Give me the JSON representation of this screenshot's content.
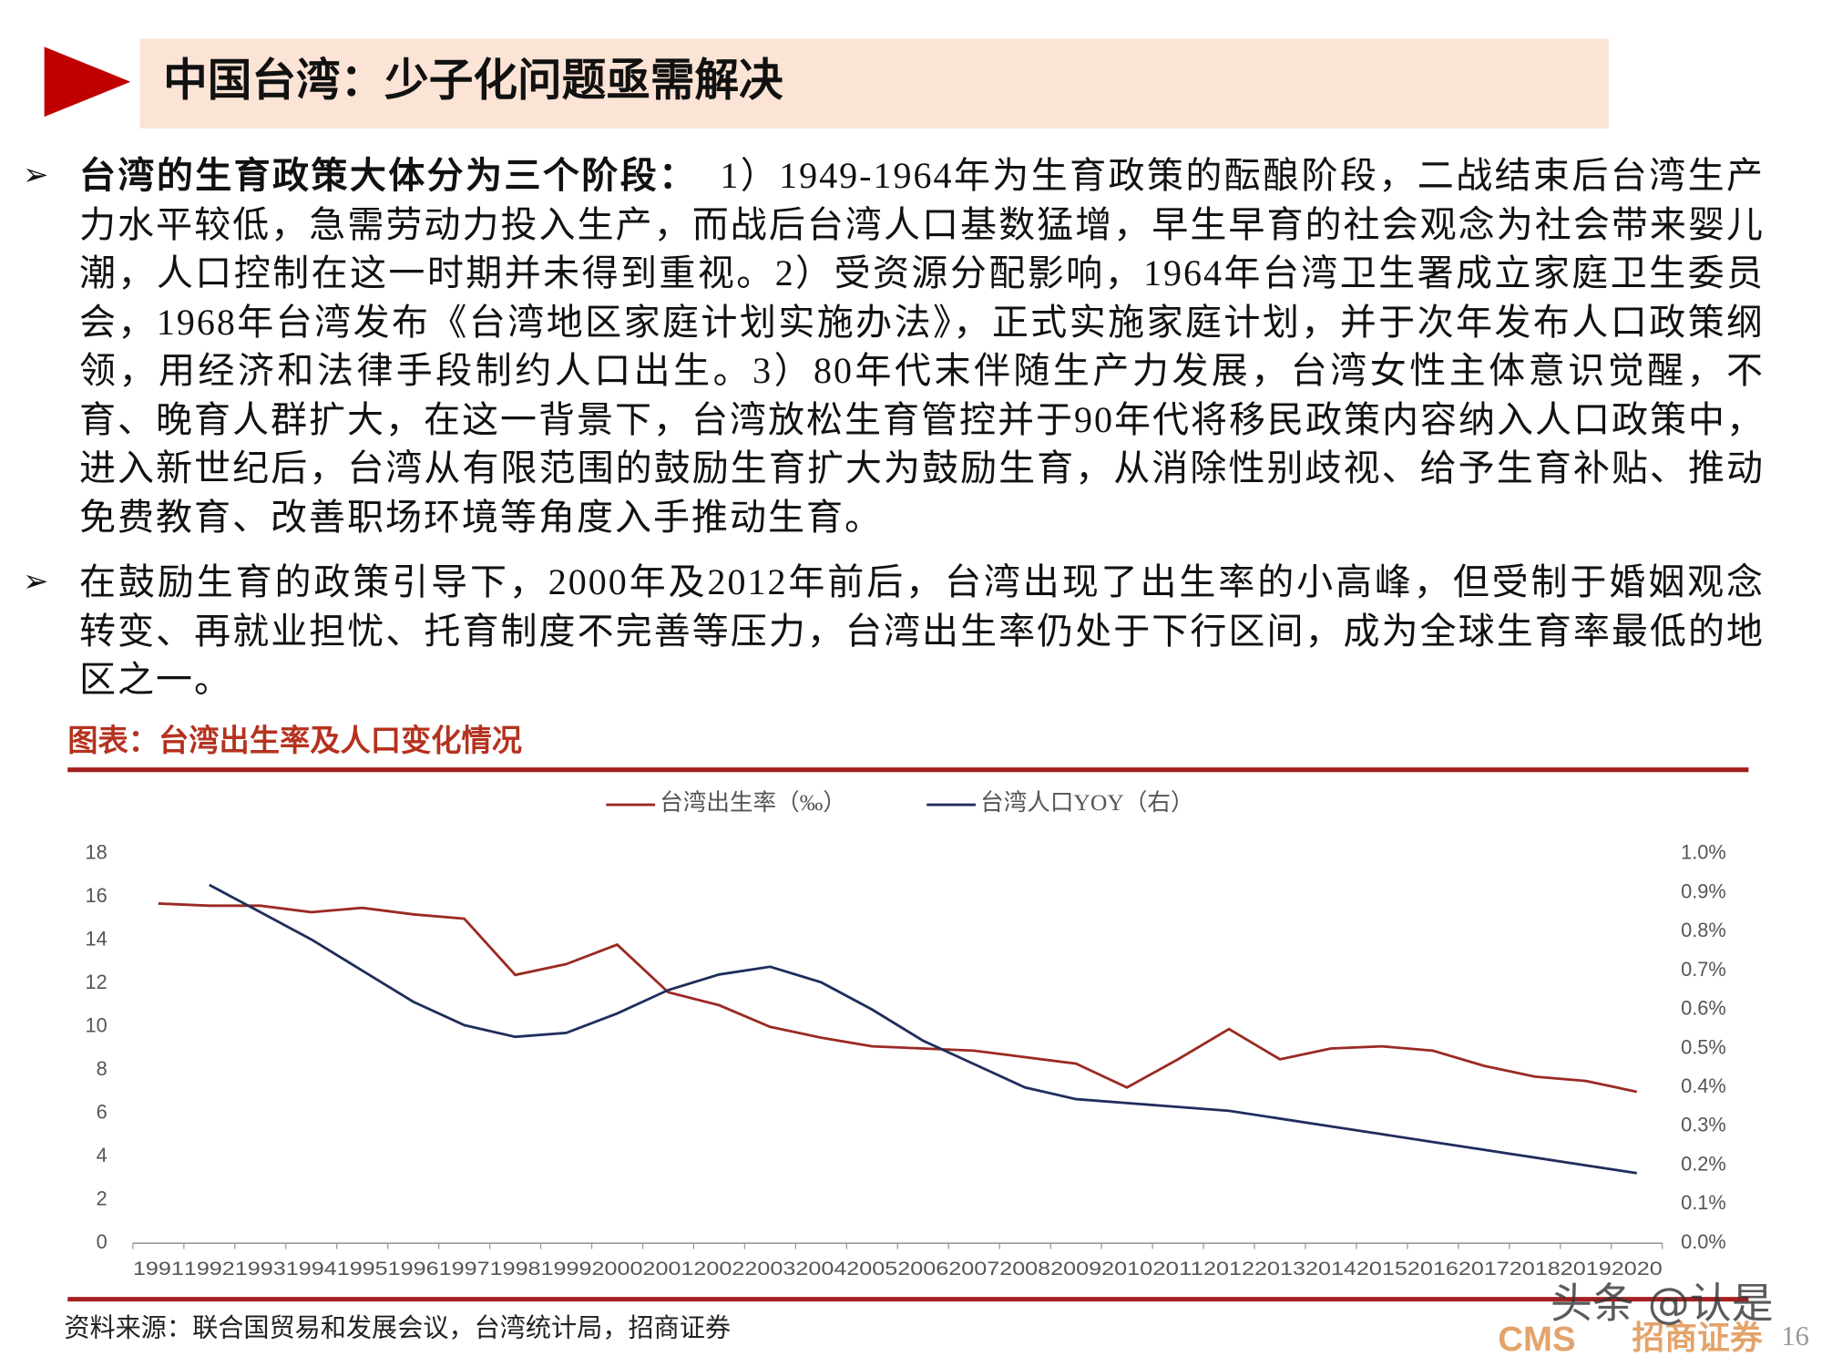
{
  "header": {
    "title": "中国台湾：少子化问题亟需解决"
  },
  "paragraphs": [
    {
      "lead": "台湾的生育政策大体分为三个阶段：",
      "text": "1）1949-1964年为生育政策的酝酿阶段，二战结束后台湾生产力水平较低，急需劳动力投入生产，而战后台湾人口基数猛增，早生早育的社会观念为社会带来婴儿潮，人口控制在这一时期并未得到重视。2）受资源分配影响，1964年台湾卫生署成立家庭卫生委员会，1968年台湾发布《台湾地区家庭计划实施办法》，正式实施家庭计划，并于次年发布人口政策纲领，用经济和法律手段制约人口出生。3）80年代末伴随生产力发展，台湾女性主体意识觉醒，不育、晚育人群扩大，在这一背景下，台湾放松生育管控并于90年代将移民政策内容纳入人口政策中，进入新世纪后，台湾从有限范围的鼓励生育扩大为鼓励生育，从消除性别歧视、给予生育补贴、推动免费教育、改善职场环境等角度入手推动生育。"
    },
    {
      "text": "在鼓励生育的政策引导下，2000年及2012年前后，台湾出现了出生率的小高峰，但受制于婚姻观念转变、再就业担忧、托育制度不完善等压力，台湾出生率仍处于下行区间，成为全球生育率最低的地区之一。"
    }
  ],
  "chart_title": "图表：台湾出生率及人口变化情况",
  "chart_data": {
    "type": "line",
    "categories": [
      "1991",
      "1992",
      "1993",
      "1994",
      "1995",
      "1996",
      "1997",
      "1998",
      "1999",
      "2000",
      "2001",
      "2002",
      "2003",
      "2004",
      "2005",
      "2006",
      "2007",
      "2008",
      "2009",
      "2010",
      "2011",
      "2012",
      "2013",
      "2014",
      "2015",
      "2016",
      "2017",
      "2018",
      "2019",
      "2020"
    ],
    "series": [
      {
        "name": "台湾出生率（‰）",
        "color": "#9b2a22",
        "values": [
          15.7,
          15.6,
          15.6,
          15.3,
          15.5,
          15.2,
          15.0,
          12.4,
          12.9,
          13.8,
          11.6,
          11.0,
          10.0,
          9.5,
          9.1,
          9.0,
          8.9,
          8.6,
          8.3,
          7.2,
          8.5,
          9.9,
          8.5,
          9.0,
          9.1,
          8.9,
          8.2,
          7.7,
          7.5,
          7.0
        ]
      },
      {
        "name": "台湾人口YOY（右）",
        "color": "#1f2d5c",
        "axis": "y2",
        "values": [
          null,
          0.92,
          0.85,
          0.78,
          0.7,
          0.62,
          0.56,
          0.53,
          0.54,
          0.59,
          0.65,
          0.69,
          0.71,
          0.67,
          0.6,
          0.52,
          0.46,
          0.4,
          0.37,
          0.36,
          0.35,
          0.34,
          0.32,
          0.3,
          0.28,
          0.26,
          0.24,
          0.22,
          0.2,
          0.18
        ]
      }
    ],
    "ylim": [
      0,
      18
    ],
    "yticks": [
      0,
      2,
      4,
      6,
      8,
      10,
      12,
      14,
      16,
      18
    ],
    "y2lim": [
      0,
      1.0
    ],
    "y2ticks": [
      {
        "value": 0,
        "label": "0.0%"
      },
      {
        "value": 0.1,
        "label": "0.1%"
      },
      {
        "value": 0.2,
        "label": "0.2%"
      },
      {
        "value": 0.3,
        "label": "0.3%"
      },
      {
        "value": 0.4,
        "label": "0.4%"
      },
      {
        "value": 0.5,
        "label": "0.5%"
      },
      {
        "value": 0.6,
        "label": "0.6%"
      },
      {
        "value": 0.7,
        "label": "0.7%"
      },
      {
        "value": 0.8,
        "label": "0.8%"
      },
      {
        "value": 0.9,
        "label": "0.9%"
      },
      {
        "value": 1.0,
        "label": "1.0%"
      }
    ],
    "grid": false,
    "legend": "top"
  },
  "source": "资料来源：联合国贸易和发展会议，台湾统计局，招商证券",
  "footer": {
    "logo": "CMS",
    "company": "招商证券",
    "page": "16",
    "watermark": "头条 @认是"
  }
}
